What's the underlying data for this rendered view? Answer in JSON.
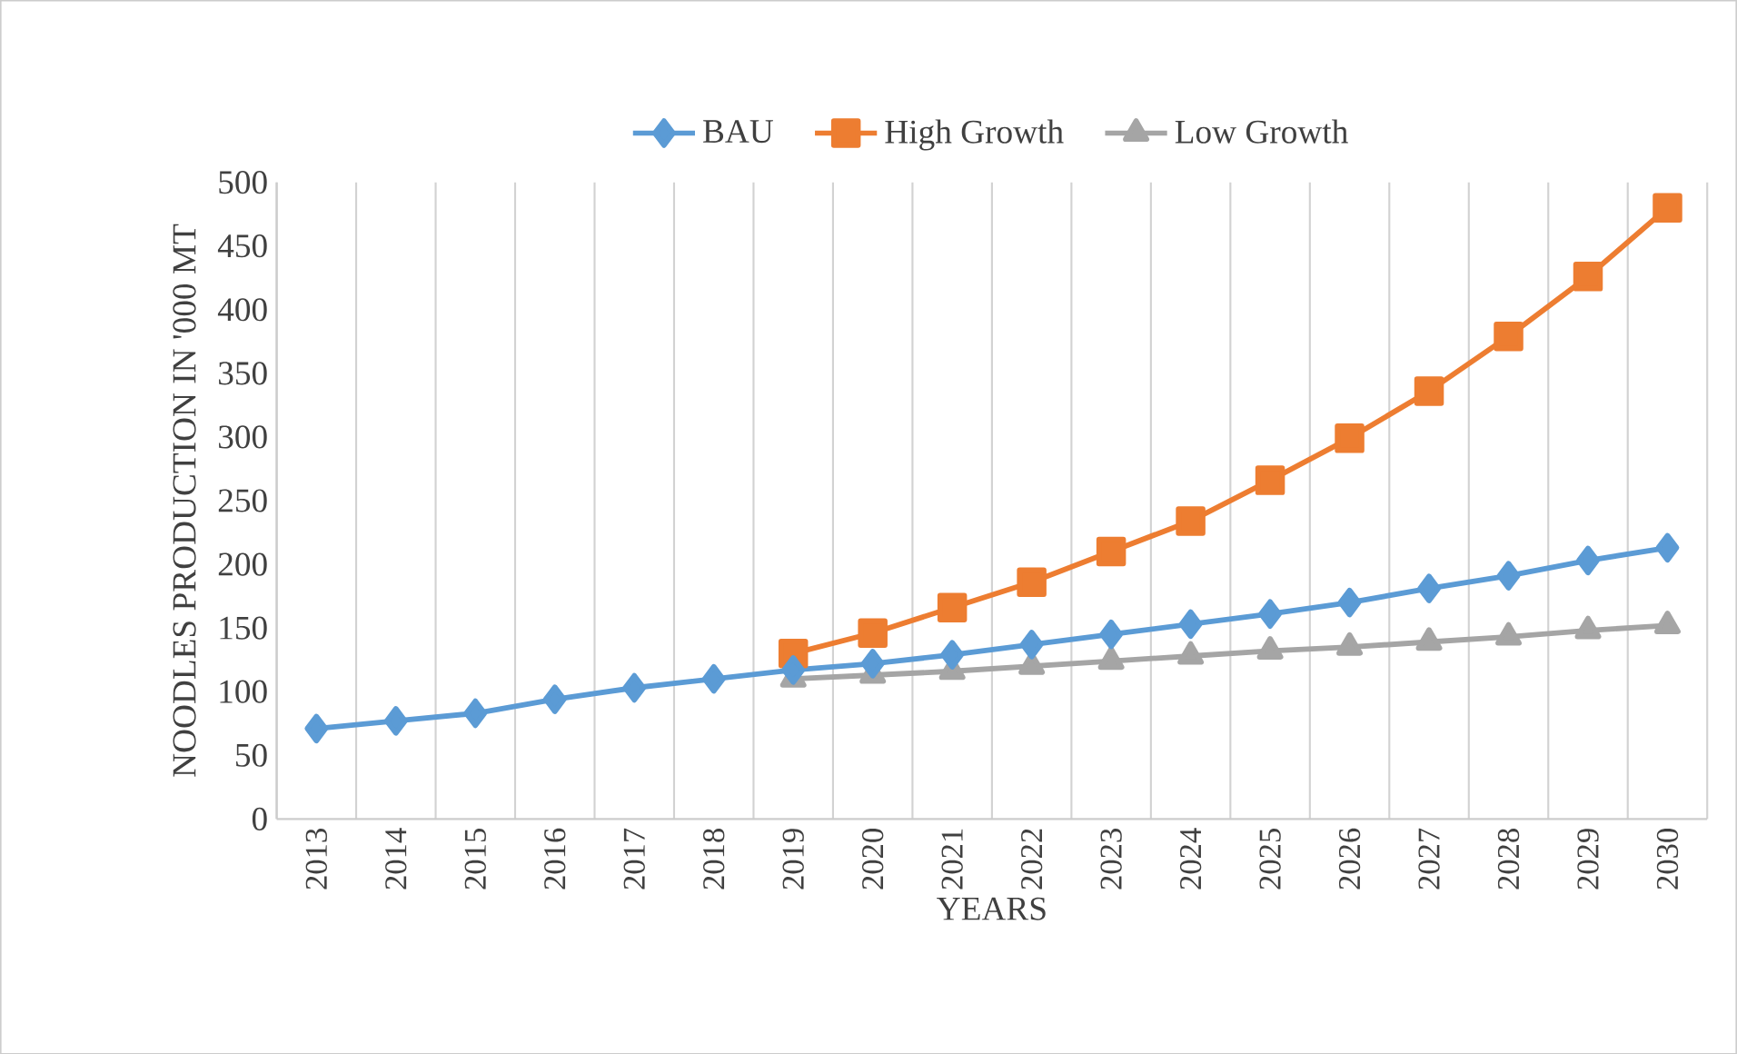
{
  "chart_data": {
    "type": "line",
    "xlabel": "YEARS",
    "ylabel": "NOODLES PRODUCTION IN '000 MT",
    "categories": [
      "2013",
      "2014",
      "2015",
      "2016",
      "2017",
      "2018",
      "2019",
      "2020",
      "2021",
      "2022",
      "2023",
      "2024",
      "2025",
      "2026",
      "2027",
      "2028",
      "2029",
      "2030"
    ],
    "series": [
      {
        "name": "BAU",
        "color": "#5b9bd5",
        "marker": "diamond",
        "values": [
          71,
          77,
          83,
          94,
          103,
          110,
          117,
          122,
          129,
          137,
          145,
          153,
          161,
          170,
          181,
          191,
          203,
          213
        ]
      },
      {
        "name": "High Growth",
        "color": "#ed7d31",
        "marker": "square",
        "values": [
          null,
          null,
          null,
          null,
          null,
          null,
          130,
          146,
          166,
          186,
          210,
          234,
          266,
          299,
          336,
          379,
          426,
          480
        ]
      },
      {
        "name": "Low Growth",
        "color": "#a5a5a5",
        "marker": "triangle",
        "values": [
          null,
          null,
          null,
          null,
          null,
          null,
          110,
          113,
          116,
          120,
          124,
          128,
          132,
          135,
          139,
          143,
          148,
          152
        ]
      }
    ],
    "ylim": [
      0,
      500
    ],
    "yticks": [
      0,
      50,
      100,
      150,
      200,
      250,
      300,
      350,
      400,
      450,
      500
    ],
    "grid": "x",
    "legend": "top",
    "line_style": "solid"
  }
}
